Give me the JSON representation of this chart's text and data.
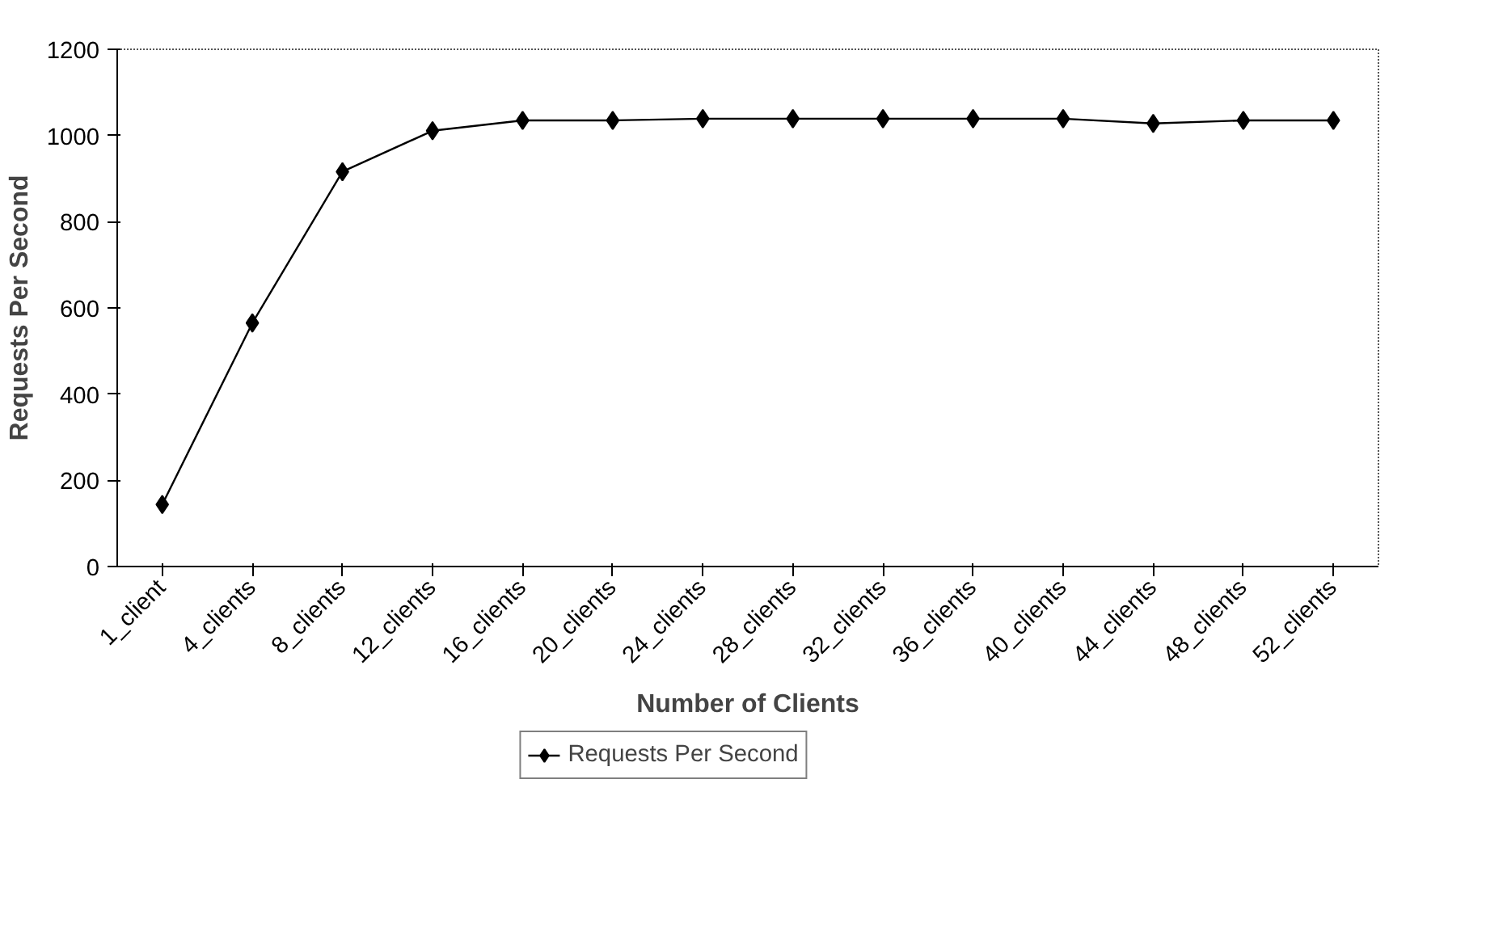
{
  "chart_data": {
    "type": "line",
    "xlabel": "Number of Clients",
    "ylabel": "Requests Per Second",
    "categories": [
      "1_client",
      "4_clients",
      "8_clients",
      "12_clients",
      "16_clients",
      "20_clients",
      "24_clients",
      "28_clients",
      "32_clients",
      "36_clients",
      "40_clients",
      "44_clients",
      "48_clients",
      "52_clients"
    ],
    "series": [
      {
        "name": "Requests Per Second",
        "color": "#000000",
        "values": [
          144,
          565,
          916,
          1011,
          1035,
          1035,
          1039,
          1039,
          1039,
          1039,
          1039,
          1028,
          1035,
          1035
        ]
      }
    ],
    "ylim": [
      0,
      1200
    ],
    "yticks": [
      0,
      200,
      400,
      600,
      800,
      1000,
      1200
    ],
    "marker": "diamond",
    "line_style": "solid",
    "grid": false,
    "legend": "bottom"
  }
}
